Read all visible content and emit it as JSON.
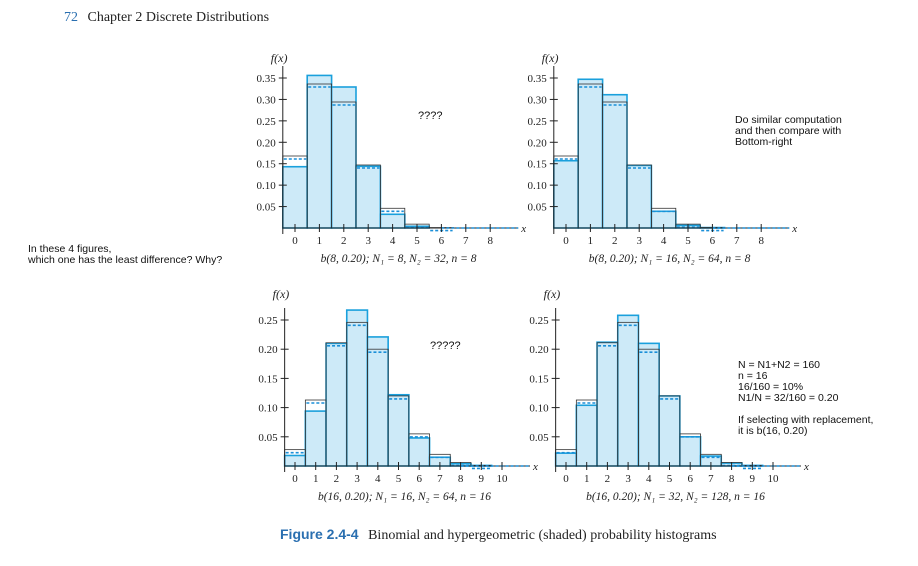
{
  "header": {
    "page_number": "72",
    "chapter": "Chapter 2 Discrete Distributions"
  },
  "notes": {
    "left_question": "In these 4 figures,\nwhich one has the least difference? Why?",
    "top_right": "Do similar computation\nand then compare with\nBottom-right",
    "bottom_right": "N = N1+N2 = 160\nn = 16\n16/160 = 10%\nN1/N = 32/160 = 0.20\n\nIf selecting with replacement,\nit is b(16, 0.20)"
  },
  "question_marks": {
    "top_left": "????",
    "bottom_left": "?????"
  },
  "caption": {
    "label": "Figure 2.4-4",
    "text": "Binomial and hypergeometric (shaded) probability histograms"
  },
  "colors": {
    "shaded_fill": "#cdeaf8",
    "shaded_stroke": "#1aa0dc",
    "binomial_line": "#333333",
    "dashed": "#1a8fd8"
  },
  "chart_data": [
    {
      "type": "bar",
      "title": "b(8, 0.20); N₁ = 8, N₂ = 32, n = 8",
      "ylabel": "f(x)",
      "xlabel": "x",
      "x": [
        0,
        1,
        2,
        3,
        4,
        5,
        6,
        7,
        8
      ],
      "ylim": [
        0,
        0.35
      ],
      "yticks": [
        "0.35",
        "0.30",
        "0.25",
        "0.20",
        "0.15",
        "0.10",
        "0.05"
      ],
      "series": [
        {
          "name": "Binomial",
          "values": [
            0.168,
            0.336,
            0.294,
            0.147,
            0.046,
            0.009,
            0.001,
            0.0,
            0.0
          ]
        },
        {
          "name": "Hypergeometric (shaded)",
          "values": [
            0.143,
            0.356,
            0.329,
            0.144,
            0.032,
            0.004,
            0.0,
            0.0,
            0.0
          ]
        }
      ]
    },
    {
      "type": "bar",
      "title": "b(8, 0.20); N₁ = 16, N₂ = 64, n = 8",
      "ylabel": "f(x)",
      "xlabel": "x",
      "x": [
        0,
        1,
        2,
        3,
        4,
        5,
        6,
        7,
        8
      ],
      "ylim": [
        0,
        0.35
      ],
      "yticks": [
        "0.35",
        "0.30",
        "0.25",
        "0.20",
        "0.15",
        "0.10",
        "0.05"
      ],
      "series": [
        {
          "name": "Binomial",
          "values": [
            0.168,
            0.336,
            0.294,
            0.147,
            0.046,
            0.009,
            0.001,
            0.0,
            0.0
          ]
        },
        {
          "name": "Hypergeometric (shaded)",
          "values": [
            0.157,
            0.347,
            0.311,
            0.146,
            0.039,
            0.006,
            0.001,
            0.0,
            0.0
          ]
        }
      ]
    },
    {
      "type": "bar",
      "title": "b(16, 0.20); N₁ = 16, N₂ = 64, n = 16",
      "ylabel": "f(x)",
      "xlabel": "x",
      "x": [
        0,
        1,
        2,
        3,
        4,
        5,
        6,
        7,
        8,
        9,
        10
      ],
      "ylim": [
        0,
        0.25
      ],
      "yticks": [
        "0.25",
        "0.20",
        "0.15",
        "0.10",
        "0.05"
      ],
      "series": [
        {
          "name": "Binomial",
          "values": [
            0.028,
            0.113,
            0.211,
            0.246,
            0.2,
            0.12,
            0.055,
            0.02,
            0.006,
            0.001,
            0.0
          ]
        },
        {
          "name": "Hypergeometric (shaded)",
          "values": [
            0.018,
            0.094,
            0.21,
            0.267,
            0.221,
            0.122,
            0.048,
            0.015,
            0.004,
            0.001,
            0.0
          ]
        }
      ]
    },
    {
      "type": "bar",
      "title": "b(16, 0.20); N₁ = 32, N₂ = 128, n = 16",
      "ylabel": "f(x)",
      "xlabel": "x",
      "x": [
        0,
        1,
        2,
        3,
        4,
        5,
        6,
        7,
        8,
        9,
        10
      ],
      "ylim": [
        0,
        0.25
      ],
      "yticks": [
        "0.25",
        "0.20",
        "0.15",
        "0.10",
        "0.05"
      ],
      "series": [
        {
          "name": "Binomial",
          "values": [
            0.028,
            0.113,
            0.211,
            0.246,
            0.2,
            0.12,
            0.055,
            0.02,
            0.006,
            0.001,
            0.0
          ]
        },
        {
          "name": "Hypergeometric (shaded)",
          "values": [
            0.022,
            0.104,
            0.212,
            0.258,
            0.21,
            0.12,
            0.05,
            0.017,
            0.005,
            0.001,
            0.0
          ]
        }
      ]
    }
  ]
}
